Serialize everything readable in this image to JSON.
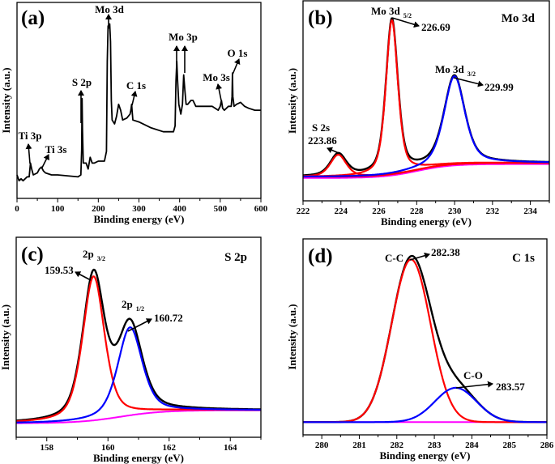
{
  "chart_data": [
    {
      "panel": "(a)",
      "type": "line",
      "title": "",
      "xlabel": "Binding energy (eV)",
      "ylabel": "Intensity (a.u.)",
      "xlim": [
        0,
        600
      ],
      "ylim": [
        0,
        100
      ],
      "xticks": [
        0,
        100,
        200,
        300,
        400,
        500,
        600
      ],
      "yticks_shown": false,
      "series": [
        {
          "color": "#000000",
          "x": [
            0,
            5,
            10,
            15,
            25,
            30,
            33,
            36,
            40,
            50,
            55,
            60,
            65,
            70,
            85,
            100,
            150,
            157,
            159,
            160,
            161,
            163,
            170,
            175,
            180,
            185,
            190,
            200,
            215,
            220,
            222,
            224,
            226,
            228,
            230,
            232,
            234,
            240,
            245,
            250,
            255,
            260,
            270,
            278,
            280,
            282,
            283,
            285,
            300,
            330,
            360,
            385,
            389,
            391,
            393,
            395,
            398,
            403,
            407,
            410,
            413,
            416,
            420,
            428,
            433,
            440,
            460,
            480,
            495,
            500,
            503,
            506,
            510,
            520,
            527,
            529,
            530,
            531,
            534,
            540,
            550,
            560,
            570,
            585,
            600
          ],
          "y": [
            12,
            9,
            10,
            9,
            11,
            11,
            18,
            15,
            12,
            13,
            15,
            16,
            14,
            13,
            12,
            12,
            11,
            12,
            25,
            51,
            35,
            18,
            18,
            15,
            21,
            18,
            18,
            19,
            19,
            24,
            70,
            88,
            87,
            89,
            80,
            50,
            40,
            38,
            42,
            48,
            45,
            40,
            41,
            43,
            45,
            48,
            45,
            40,
            39,
            36,
            34,
            34,
            37,
            60,
            70,
            60,
            48,
            43,
            48,
            63,
            55,
            48,
            48,
            50,
            50,
            47,
            47,
            47,
            45,
            47,
            50,
            46,
            45,
            47,
            47,
            52,
            64,
            52,
            47,
            48,
            49,
            47,
            46,
            45,
            45
          ]
        }
      ],
      "annotations": [
        "Mo 3d",
        "Mo 3p",
        "O 1s",
        "Mo 3s",
        "C 1s",
        "S 2p",
        "Ti 3p",
        "Ti 3s"
      ]
    },
    {
      "panel": "(b)",
      "type": "line",
      "title": "Mo 3d",
      "xlabel": "Binding energy (eV)",
      "ylabel": "Intensity (a.u.)",
      "xlim": [
        222,
        235
      ],
      "ylim": [
        0,
        100
      ],
      "xticks": [
        222,
        224,
        226,
        228,
        230,
        232,
        234
      ],
      "yticks_shown": false,
      "background": {
        "low": 12,
        "high": 19,
        "step_center": 228,
        "step_width": 0.9,
        "colors": [
          "#ff0000",
          "#ff00ff"
        ]
      },
      "components": [
        {
          "label": "S 2s",
          "center": 223.86,
          "height": 11,
          "fwhm": 1.0,
          "color": "#ff0000"
        },
        {
          "label": "Mo 3d 5/2",
          "center": 226.69,
          "height": 77,
          "fwhm": 0.75,
          "color": "#ff0000"
        },
        {
          "label": "Mo 3d 3/2",
          "center": 229.99,
          "height": 44,
          "fwhm": 1.3,
          "color": "#0000ff"
        }
      ],
      "envelope_color": "#000000",
      "annotations": [
        {
          "label": "Mo 3d",
          "sub": "5/2",
          "value": "226.69"
        },
        {
          "label": "Mo 3d",
          "sub": "3/2",
          "value": "229.99"
        },
        {
          "label": "S 2s",
          "sub": "",
          "value": "223.86"
        }
      ]
    },
    {
      "panel": "(c)",
      "type": "line",
      "title": "S 2p",
      "xlabel": "Binding energy (eV)",
      "ylabel": "Intensity (a.u.)",
      "xlim": [
        157,
        165
      ],
      "ylim": [
        0,
        100
      ],
      "xticks": [
        158,
        160,
        162,
        164
      ],
      "yticks_shown": false,
      "background": {
        "low": 7,
        "high": 13.5,
        "step_center": 160.4,
        "step_width": 0.7,
        "colors": [
          "#ff00ff"
        ]
      },
      "components": [
        {
          "label": "2p 3/2",
          "center": 159.53,
          "height": 72,
          "fwhm": 0.85,
          "color": "#ff0000"
        },
        {
          "label": "2p 1/2",
          "center": 160.72,
          "height": 44,
          "fwhm": 0.95,
          "color": "#0000ff"
        }
      ],
      "envelope_color": "#000000",
      "annotations": [
        {
          "label": "2p",
          "sub": "3/2",
          "value": "159.53"
        },
        {
          "label": "2p",
          "sub": "1/2",
          "value": "160.72"
        }
      ]
    },
    {
      "panel": "(d)",
      "type": "line",
      "title": "C 1s",
      "xlabel": "Binding energy (eV)",
      "ylabel": "Intensity (a.u.)",
      "xlim": [
        279.5,
        286
      ],
      "ylim": [
        0,
        100
      ],
      "xticks": [
        280,
        281,
        282,
        283,
        284,
        285,
        286
      ],
      "yticks_shown": false,
      "background": {
        "low": 6.5,
        "high": 6.5,
        "step_center": 283,
        "step_width": 1,
        "colors": [
          "#ff00ff"
        ]
      },
      "components": [
        {
          "label": "C-C",
          "center": 282.38,
          "height": 83,
          "fwhm": 1.22,
          "color": "#ff0000",
          "shape": "gauss"
        },
        {
          "label": "C-O",
          "center": 283.57,
          "height": 17.5,
          "fwhm": 1.3,
          "color": "#0000ff",
          "shape": "gauss"
        }
      ],
      "envelope_color": "#000000",
      "annotations": [
        {
          "label": "C-C",
          "sub": "",
          "value": "282.38"
        },
        {
          "label": "C-O",
          "sub": "",
          "value": "283.57"
        }
      ]
    }
  ]
}
